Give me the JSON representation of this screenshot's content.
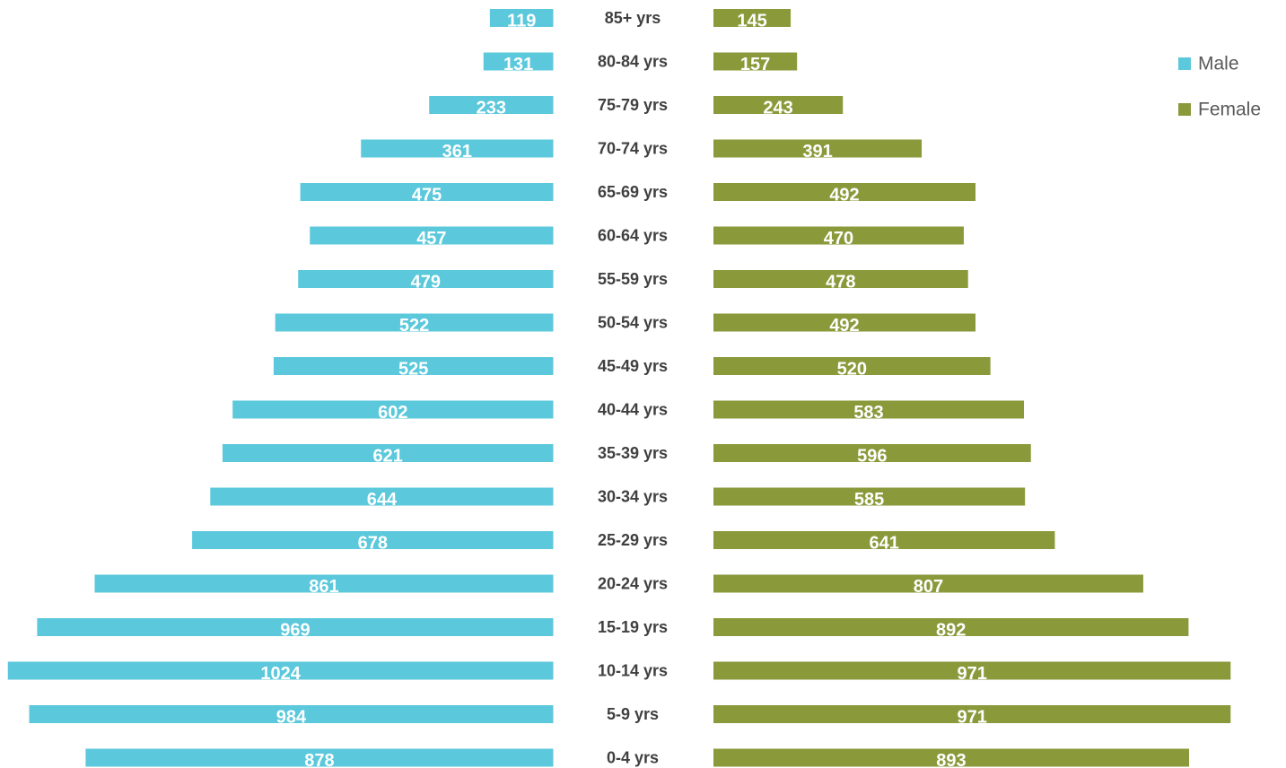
{
  "chart_data": {
    "type": "pyramid",
    "categories": [
      "85+ yrs",
      "80-84 yrs",
      "75-79 yrs",
      "70-74 yrs",
      "65-69 yrs",
      "60-64 yrs",
      "55-59 yrs",
      "50-54 yrs",
      "45-49 yrs",
      "40-44 yrs",
      "35-39 yrs",
      "30-34 yrs",
      "25-29 yrs",
      "20-24 yrs",
      "15-19 yrs",
      "10-14 yrs",
      "5-9 yrs",
      "0-4 yrs"
    ],
    "series": [
      {
        "name": "Male",
        "color": "#5bc8db",
        "values": [
          119,
          131,
          233,
          361,
          475,
          457,
          479,
          522,
          525,
          602,
          621,
          644,
          678,
          861,
          969,
          1024,
          984,
          878
        ]
      },
      {
        "name": "Female",
        "color": "#8a9a3b",
        "values": [
          145,
          157,
          243,
          391,
          492,
          470,
          478,
          492,
          520,
          583,
          596,
          585,
          641,
          807,
          892,
          971,
          971,
          893
        ]
      }
    ],
    "legend": "top-right"
  }
}
